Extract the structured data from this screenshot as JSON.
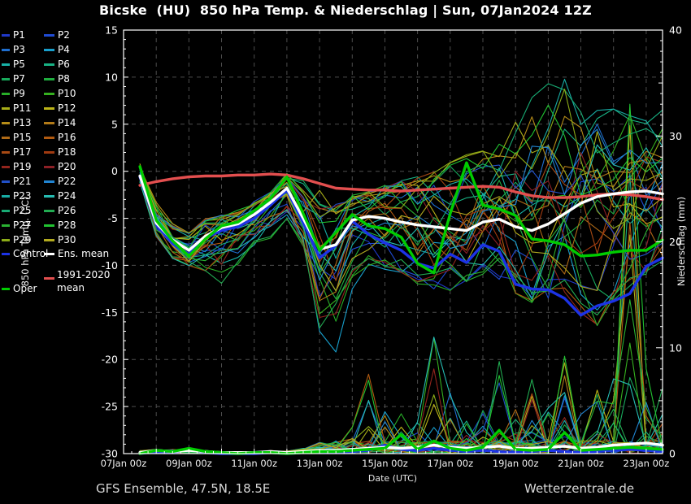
{
  "title": "Bicske  (HU)  850 hPa Temp. & Niederschlag | Sun, 07Jan2024 12Z",
  "footer": {
    "left": "GFS Ensemble, 47.5N, 18.5E",
    "right": "Wetterzentrale.de"
  },
  "axes": {
    "x_label": "Date (UTC)",
    "y_left_label": "850 hPa Temp. (°C)",
    "y_right_label": "Niederschlag (mm)"
  },
  "legend": {
    "control": {
      "label": "Control",
      "color": "#1c33e6"
    },
    "ens_mean": {
      "label": "Ens. mean",
      "color": "#ffffff"
    },
    "climate": {
      "label": "1991-2020 mean",
      "line1": "1991-2020",
      "line2": "mean",
      "color": "#e34f4f"
    },
    "oper": {
      "label": "Oper",
      "color": "#00cc00"
    }
  },
  "chart_data": {
    "type": "line",
    "title": "Bicske (HU) 850 hPa Temp. & Niederschlag | Sun, 07Jan2024 12Z",
    "x_axis": {
      "label": "Date (UTC)",
      "tick_labels": [
        "07Jan 00z",
        "09Jan 00z",
        "11Jan 00z",
        "13Jan 00z",
        "15Jan 00z",
        "17Jan 00z",
        "19Jan 00z",
        "21Jan 00z",
        "23Jan 00z"
      ],
      "total_hours": 396,
      "gridline_every_hours": 24
    },
    "y_left": {
      "label": "850 hPa Temp. (°C)",
      "range": [
        -30,
        15
      ],
      "ticks": [
        15,
        10,
        5,
        0,
        -5,
        -10,
        -15,
        -20,
        -25,
        -30
      ]
    },
    "y_right": {
      "label": "Niederschlag (mm)",
      "range": [
        0,
        40
      ],
      "ticks": [
        0,
        10,
        20,
        30,
        40
      ]
    },
    "series_start_hour": 12,
    "step_hours": 12,
    "grid_color": "#4d4d4d",
    "members": [
      {
        "label": "P1",
        "color": "#2038c8"
      },
      {
        "label": "P2",
        "color": "#204cd4"
      },
      {
        "label": "P3",
        "color": "#1f6fd0"
      },
      {
        "label": "P4",
        "color": "#189fcc"
      },
      {
        "label": "P5",
        "color": "#18b2a8"
      },
      {
        "label": "P6",
        "color": "#18b284"
      },
      {
        "label": "P7",
        "color": "#18aa5c"
      },
      {
        "label": "P8",
        "color": "#1fae3f"
      },
      {
        "label": "P9",
        "color": "#28ae28"
      },
      {
        "label": "P10",
        "color": "#35b01f"
      },
      {
        "label": "P11",
        "color": "#a8ae18"
      },
      {
        "label": "P12",
        "color": "#bcb418"
      },
      {
        "label": "P13",
        "color": "#b68d18"
      },
      {
        "label": "P14",
        "color": "#b27a18"
      },
      {
        "label": "P15",
        "color": "#b06a16"
      },
      {
        "label": "P16",
        "color": "#b05a10"
      },
      {
        "label": "P17",
        "color": "#a84a14"
      },
      {
        "label": "P18",
        "color": "#a03a10"
      },
      {
        "label": "P19",
        "color": "#93251d"
      },
      {
        "label": "P20",
        "color": "#8c2026"
      },
      {
        "label": "P21",
        "color": "#2150c8"
      },
      {
        "label": "P22",
        "color": "#2185d2"
      },
      {
        "label": "P23",
        "color": "#18aca4"
      },
      {
        "label": "P24",
        "color": "#26bcb2"
      },
      {
        "label": "P25",
        "color": "#18ab74"
      },
      {
        "label": "P26",
        "color": "#22ac52"
      },
      {
        "label": "P27",
        "color": "#2ab232"
      },
      {
        "label": "P28",
        "color": "#21c331"
      },
      {
        "label": "P29",
        "color": "#8cab18"
      },
      {
        "label": "P30",
        "color": "#b2aa1f"
      }
    ],
    "temp": {
      "ens_mean": [
        -0.5,
        -5.5,
        -7.3,
        -8.4,
        -6.9,
        -6.0,
        -5.6,
        -4.6,
        -3.3,
        -1.8,
        -5.0,
        -8.3,
        -7.8,
        -5.2,
        -4.8,
        -5.0,
        -5.4,
        -5.7,
        -5.9,
        -6.1,
        -6.3,
        -5.4,
        -5.1,
        -5.9,
        -6.3,
        -5.6,
        -4.5,
        -3.4,
        -2.7,
        -2.4,
        -2.2,
        -2.1,
        -2.4
      ],
      "control": [
        -0.6,
        -5.7,
        -7.7,
        -8.8,
        -7.1,
        -6.3,
        -5.9,
        -5.0,
        -3.6,
        -2.0,
        -5.4,
        -9.2,
        -7.9,
        -5.3,
        -6.7,
        -7.6,
        -8.4,
        -9.8,
        -10.3,
        -8.8,
        -9.7,
        -7.8,
        -8.5,
        -12.0,
        -12.5,
        -12.6,
        -13.5,
        -15.3,
        -14.3,
        -13.8,
        -13.0,
        -10.1,
        -9.2
      ],
      "oper": [
        0.5,
        -5.2,
        -7.4,
        -9.0,
        -7.2,
        -5.8,
        -5.4,
        -4.2,
        -2.9,
        -0.6,
        -4.5,
        -8.4,
        -6.5,
        -4.6,
        -5.8,
        -6.1,
        -7.0,
        -9.8,
        -10.8,
        -4.5,
        0.9,
        -3.6,
        -4.0,
        -4.7,
        -7.2,
        -7.4,
        -7.8,
        -9.0,
        -8.9,
        -8.6,
        -8.4,
        -8.4,
        -7.3
      ],
      "climate_mean": [
        -1.5,
        -1.1,
        -0.8,
        -0.6,
        -0.5,
        -0.5,
        -0.4,
        -0.4,
        -0.3,
        -0.4,
        -0.8,
        -1.3,
        -1.8,
        -1.9,
        -2.0,
        -2.0,
        -2.1,
        -2.0,
        -1.9,
        -1.8,
        -1.7,
        -1.6,
        -1.7,
        -2.2,
        -2.6,
        -2.8,
        -2.8,
        -2.7,
        -2.5,
        -2.4,
        -2.5,
        -2.7,
        -3.0
      ],
      "envelope_min": [
        -1.2,
        -7.0,
        -9.3,
        -10.5,
        -11.5,
        -12.8,
        -10.0,
        -8.0,
        -7.5,
        -5.5,
        -8.0,
        -17.0,
        -19.0,
        -12.5,
        -10.0,
        -10.5,
        -11.0,
        -12.0,
        -12.5,
        -13.0,
        -12.0,
        -11.0,
        -11.5,
        -13.0,
        -14.0,
        -13.5,
        -13.0,
        -15.5,
        -16.5,
        -14.0,
        -12.5,
        -11.0,
        -10.0
      ],
      "envelope_max": [
        0.8,
        -3.0,
        -5.5,
        -6.5,
        -5.0,
        -4.5,
        -4.0,
        -3.2,
        -2.2,
        -0.2,
        -1.0,
        -2.0,
        -3.5,
        -2.5,
        -2.0,
        -1.5,
        -1.0,
        -0.5,
        0.0,
        1.0,
        2.0,
        2.5,
        3.0,
        6.0,
        8.0,
        9.5,
        10.0,
        9.0,
        8.0,
        7.0,
        6.5,
        6.0,
        7.0
      ],
      "overrides": {
        "P4": {
          "11": -17.0,
          "12": -19.2,
          "13": -12.5
        }
      }
    },
    "precip": {
      "ens_mean": [
        0.1,
        0.3,
        0.2,
        0.3,
        0.2,
        0.1,
        0.1,
        0.1,
        0.2,
        0.1,
        0.2,
        0.3,
        0.3,
        0.4,
        0.5,
        0.6,
        0.5,
        0.6,
        0.8,
        0.6,
        0.5,
        0.6,
        0.7,
        0.5,
        0.5,
        0.6,
        0.7,
        0.5,
        0.6,
        0.8,
        0.9,
        1.0,
        0.8
      ],
      "control": [
        0.0,
        0.2,
        0.1,
        0.4,
        0.1,
        0.0,
        0.0,
        0.0,
        0.1,
        0.0,
        0.1,
        0.2,
        0.1,
        0.2,
        0.3,
        0.8,
        0.4,
        0.3,
        0.5,
        0.3,
        0.2,
        0.3,
        0.2,
        0.1,
        0.2,
        0.3,
        0.2,
        0.1,
        0.2,
        0.3,
        0.4,
        0.3,
        0.2
      ],
      "oper": [
        0.0,
        0.3,
        0.2,
        0.5,
        0.2,
        0.1,
        0.0,
        0.1,
        0.1,
        0.0,
        0.1,
        0.2,
        0.2,
        0.3,
        0.4,
        0.5,
        1.8,
        0.4,
        1.2,
        0.5,
        0.3,
        0.6,
        2.2,
        0.4,
        0.3,
        0.4,
        2.0,
        0.3,
        0.4,
        0.5,
        0.6,
        0.5,
        0.4
      ],
      "max_envelope": [
        0.6,
        0.8,
        0.8,
        0.8,
        0.6,
        0.4,
        0.4,
        0.4,
        0.6,
        0.5,
        1.0,
        1.5,
        1.5,
        2.5,
        7.5,
        5.0,
        4.5,
        6.0,
        11.0,
        6.0,
        4.0,
        5.0,
        9.0,
        6.0,
        7.0,
        5.0,
        9.0,
        5.5,
        6.0,
        12.0,
        33.0,
        8.0,
        7.0
      ],
      "overrides": {
        "P16": {
          "13": 2.5,
          "14": 7.5,
          "15": 1.0
        },
        "P24": {
          "17": 3.0,
          "18": 11.0,
          "19": 5.5,
          "20": 2.0
        },
        "P26": {
          "22": 8.7,
          "24": 7.0
        },
        "P28": {
          "26": 9.2,
          "29": 1.0,
          "30": 33.0,
          "31": 8.0
        },
        "P12": {
          "28": 6.0
        }
      }
    }
  }
}
